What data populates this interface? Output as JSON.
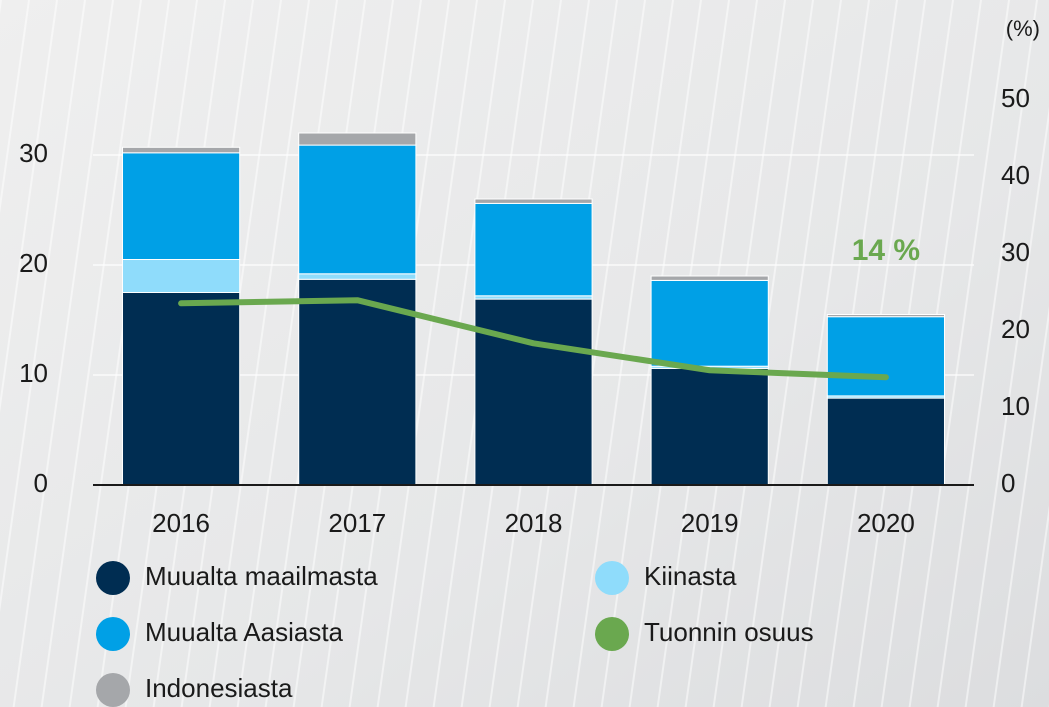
{
  "chart_data": {
    "type": "bar",
    "stacked": true,
    "categories": [
      "2016",
      "2017",
      "2018",
      "2019",
      "2020"
    ],
    "series": [
      {
        "name": "Muualta maailmasta",
        "color": "#002d52",
        "values": [
          17.5,
          18.7,
          16.9,
          10.6,
          7.9
        ]
      },
      {
        "name": "Kiinasta",
        "color": "#8fdcfb",
        "values": [
          3.0,
          0.5,
          0.3,
          0.2,
          0.2
        ]
      },
      {
        "name": "Muualta Aasiasta",
        "color": "#00a0e6",
        "values": [
          9.7,
          11.7,
          8.4,
          7.8,
          7.2
        ]
      },
      {
        "name": "Tuonnin osuus",
        "color": "#6aa84f",
        "type": "line",
        "axis": "y2",
        "values": [
          23.6,
          24.0,
          18.4,
          14.9,
          14.0
        ]
      },
      {
        "name": "Indonesiasta",
        "color": "#a5a7aa",
        "values": [
          0.5,
          1.1,
          0.4,
          0.4,
          0.2
        ]
      }
    ],
    "ylim": [
      0,
      35
    ],
    "yticks": [
      0,
      10,
      20,
      30
    ],
    "y2lim": [
      0,
      50
    ],
    "y2ticks": [
      0,
      10,
      20,
      30,
      40,
      50
    ],
    "y2label": "(%)",
    "annotation": "14 %",
    "grid": true
  }
}
